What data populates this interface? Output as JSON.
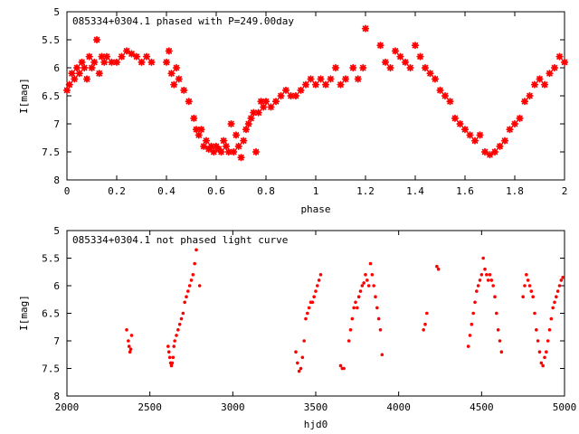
{
  "figure": {
    "background": "#ffffff",
    "marker_color": "#ff0000"
  },
  "chart_data": [
    {
      "type": "scatter",
      "title": "085334+0304.1 phased with P=249.00day",
      "xlabel": "phase",
      "ylabel": "I[mag]",
      "xlim": [
        0,
        2
      ],
      "ylim": [
        8,
        5
      ],
      "y_inverted": true,
      "grid": false,
      "xticks": [
        "0",
        "0.2",
        "0.4",
        "0.6",
        "0.8",
        "1",
        "1.2",
        "1.4",
        "1.6",
        "1.8",
        "2"
      ],
      "yticks": [
        "5",
        "5.5",
        "6",
        "6.5",
        "7",
        "7.5",
        "8"
      ],
      "marker": "star",
      "series": [
        {
          "x": [
            0.0,
            0.01,
            0.02,
            0.03,
            0.04,
            0.05,
            0.06,
            0.07,
            0.08,
            0.09,
            0.1,
            0.11,
            0.12,
            0.13,
            0.14,
            0.15,
            0.16,
            0.18,
            0.2,
            0.22,
            0.24,
            0.26,
            0.28,
            0.3,
            0.32,
            0.34,
            0.4,
            0.41,
            0.42,
            0.43,
            0.44,
            0.45,
            0.47,
            0.49,
            0.51,
            0.52,
            0.53,
            0.54,
            0.55,
            0.56,
            0.57,
            0.58,
            0.59,
            0.6,
            0.61,
            0.62,
            0.63,
            0.64,
            0.65,
            0.66,
            0.67,
            0.68,
            0.69,
            0.7,
            0.71,
            0.72,
            0.73,
            0.74,
            0.75,
            0.76,
            0.77,
            0.78,
            0.79,
            0.8,
            0.82,
            0.84,
            0.86,
            0.88,
            0.9,
            0.92,
            0.94,
            0.96,
            0.98,
            1.0,
            1.02,
            1.04,
            1.06,
            1.08,
            1.1,
            1.12,
            1.15,
            1.17,
            1.19,
            1.2,
            1.26,
            1.28,
            1.3,
            1.32,
            1.34,
            1.36,
            1.38,
            1.4,
            1.42,
            1.44,
            1.46,
            1.48,
            1.5,
            1.52,
            1.54,
            1.56,
            1.58,
            1.6,
            1.62,
            1.64,
            1.66,
            1.68,
            1.7,
            1.72,
            1.74,
            1.76,
            1.78,
            1.8,
            1.82,
            1.84,
            1.86,
            1.88,
            1.9,
            1.92,
            1.94,
            1.96,
            1.98,
            2.0
          ],
          "y": [
            6.4,
            6.3,
            6.1,
            6.2,
            6.0,
            6.1,
            5.9,
            6.0,
            6.2,
            5.8,
            6.0,
            5.9,
            5.5,
            6.1,
            5.8,
            5.9,
            5.8,
            5.9,
            5.9,
            5.8,
            5.7,
            5.75,
            5.8,
            5.9,
            5.8,
            5.9,
            5.9,
            5.7,
            6.1,
            6.3,
            6.0,
            6.2,
            6.4,
            6.6,
            6.9,
            7.1,
            7.2,
            7.1,
            7.4,
            7.3,
            7.45,
            7.4,
            7.5,
            7.4,
            7.45,
            7.5,
            7.3,
            7.4,
            7.5,
            7.0,
            7.5,
            7.2,
            7.4,
            7.6,
            7.3,
            7.1,
            7.0,
            6.9,
            6.8,
            7.5,
            6.8,
            6.6,
            6.7,
            6.6,
            6.7,
            6.6,
            6.5,
            6.4,
            6.5,
            6.5,
            6.4,
            6.3,
            6.2,
            6.3,
            6.2,
            6.3,
            6.2,
            6.0,
            6.3,
            6.2,
            6.0,
            6.2,
            6.0,
            5.3,
            5.6,
            5.9,
            6.0,
            5.7,
            5.8,
            5.9,
            6.0,
            5.6,
            5.8,
            6.0,
            6.1,
            6.2,
            6.4,
            6.5,
            6.6,
            6.9,
            7.0,
            7.1,
            7.2,
            7.3,
            7.2,
            7.5,
            7.55,
            7.5,
            7.4,
            7.3,
            7.1,
            7.0,
            6.9,
            6.6,
            6.5,
            6.3,
            6.2,
            6.3,
            6.1,
            6.0,
            5.8,
            5.9
          ]
        }
      ]
    },
    {
      "type": "scatter",
      "title": "085334+0304.1 not phased light curve",
      "xlabel": "hjd0",
      "ylabel": "I[mag]",
      "xlim": [
        2000,
        5000
      ],
      "ylim": [
        8,
        5
      ],
      "y_inverted": true,
      "grid": false,
      "xticks": [
        "2000",
        "2500",
        "3000",
        "3500",
        "4000",
        "4500",
        "5000"
      ],
      "yticks": [
        "5",
        "5.5",
        "6",
        "6.5",
        "7",
        "7.5",
        "8"
      ],
      "marker": "dot",
      "series": [
        {
          "x": [
            2360,
            2370,
            2375,
            2380,
            2385,
            2390,
            2610,
            2615,
            2620,
            2625,
            2630,
            2635,
            2640,
            2645,
            2650,
            2660,
            2670,
            2680,
            2690,
            2700,
            2710,
            2720,
            2730,
            2740,
            2750,
            2760,
            2770,
            2780,
            2800,
            3380,
            3390,
            3400,
            3410,
            3420,
            3430,
            3440,
            3450,
            3460,
            3470,
            3480,
            3490,
            3500,
            3510,
            3520,
            3530,
            3650,
            3660,
            3670,
            3700,
            3710,
            3720,
            3730,
            3740,
            3750,
            3760,
            3770,
            3780,
            3790,
            3800,
            3810,
            3820,
            3830,
            3840,
            3850,
            3860,
            3870,
            3880,
            3890,
            3900,
            4150,
            4160,
            4170,
            4230,
            4240,
            4420,
            4430,
            4440,
            4450,
            4460,
            4470,
            4480,
            4490,
            4500,
            4510,
            4520,
            4530,
            4540,
            4550,
            4560,
            4570,
            4580,
            4590,
            4600,
            4610,
            4620,
            4750,
            4760,
            4770,
            4780,
            4790,
            4800,
            4810,
            4820,
            4830,
            4840,
            4850,
            4860,
            4870,
            4880,
            4890,
            4900,
            4910,
            4920,
            4930,
            4940,
            4950,
            4960,
            4970,
            4980,
            4990
          ],
          "y": [
            6.8,
            7.0,
            7.1,
            7.2,
            7.15,
            6.9,
            7.1,
            7.2,
            7.3,
            7.4,
            7.45,
            7.4,
            7.3,
            7.1,
            7.0,
            6.9,
            6.8,
            6.7,
            6.6,
            6.5,
            6.3,
            6.2,
            6.1,
            6.0,
            5.9,
            5.8,
            5.6,
            5.35,
            6.0,
            7.2,
            7.4,
            7.55,
            7.5,
            7.3,
            7.0,
            6.6,
            6.5,
            6.4,
            6.3,
            6.3,
            6.2,
            6.1,
            6.0,
            5.9,
            5.8,
            7.45,
            7.5,
            7.5,
            7.0,
            6.8,
            6.6,
            6.4,
            6.3,
            6.4,
            6.2,
            6.1,
            6.0,
            5.95,
            5.8,
            5.9,
            6.0,
            5.6,
            5.8,
            6.0,
            6.2,
            6.4,
            6.6,
            6.8,
            7.25,
            6.8,
            6.7,
            6.5,
            5.65,
            5.7,
            7.1,
            6.9,
            6.7,
            6.5,
            6.3,
            6.1,
            6.0,
            5.9,
            5.8,
            5.5,
            5.7,
            5.8,
            5.9,
            5.8,
            5.9,
            6.0,
            6.2,
            6.5,
            6.8,
            7.0,
            7.2,
            6.2,
            6.0,
            5.8,
            5.9,
            6.0,
            6.1,
            6.2,
            6.5,
            6.8,
            7.0,
            7.2,
            7.4,
            7.45,
            7.3,
            7.2,
            7.0,
            6.8,
            6.6,
            6.4,
            6.3,
            6.2,
            6.1,
            6.0,
            5.9,
            5.85
          ]
        }
      ]
    }
  ]
}
